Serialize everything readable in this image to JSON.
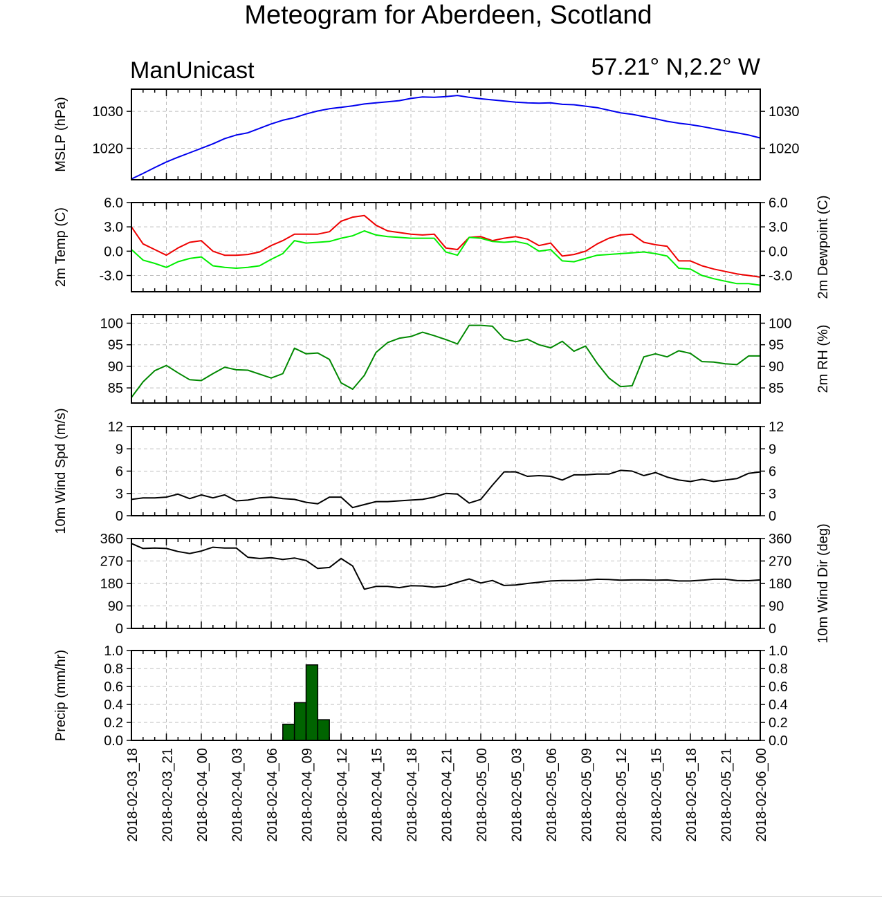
{
  "header": {
    "title": "Meteogram for Aberdeen, Scotland",
    "model": "ManUnicast",
    "location": "57.21° N,2.2° W"
  },
  "chart_data": {
    "type": "line",
    "grid": true,
    "x_tick_labels": [
      "2018-02-03_18",
      "2018-02-03_21",
      "2018-02-04_00",
      "2018-02-04_03",
      "2018-02-04_06",
      "2018-02-04_09",
      "2018-02-04_12",
      "2018-02-04_15",
      "2018-02-04_18",
      "2018-02-04_21",
      "2018-02-05_00",
      "2018-02-05_03",
      "2018-02-05_06",
      "2018-02-05_09",
      "2018-02-05_12",
      "2018-02-05_15",
      "2018-02-05_18",
      "2018-02-05_21",
      "2018-02-06_00"
    ],
    "x_start": "2018-02-03 18:00",
    "x_end": "2018-02-06 00:00",
    "hours": [
      0,
      1,
      2,
      3,
      4,
      5,
      6,
      7,
      8,
      9,
      10,
      11,
      12,
      13,
      14,
      15,
      16,
      17,
      18,
      19,
      20,
      21,
      22,
      23,
      24,
      25,
      26,
      27,
      28,
      29,
      30,
      31,
      32,
      33,
      34,
      35,
      36,
      37,
      38,
      39,
      40,
      41,
      42,
      43,
      44,
      45,
      46,
      47,
      48,
      49,
      50,
      51,
      52,
      53,
      54
    ],
    "panels": [
      {
        "id": "mslp",
        "type": "line",
        "ylabel_left": "MSLP (hPa)",
        "ylabel_right": "",
        "ylim": [
          1011.5,
          1036
        ],
        "ticks": [
          1020,
          1030
        ],
        "tick_labels": [
          "1020",
          "1030"
        ],
        "series": [
          {
            "color": "#0000ee",
            "values": [
              1011.7,
              1013.2,
              1014.8,
              1016.3,
              1017.6,
              1018.8,
              1020.0,
              1021.2,
              1022.6,
              1023.6,
              1024.2,
              1025.4,
              1026.6,
              1027.6,
              1028.3,
              1029.3,
              1030.1,
              1030.7,
              1031.1,
              1031.5,
              1032.0,
              1032.3,
              1032.6,
              1032.9,
              1033.5,
              1033.9,
              1033.8,
              1034.0,
              1034.3,
              1033.8,
              1033.4,
              1033.1,
              1032.8,
              1032.5,
              1032.3,
              1032.2,
              1032.3,
              1031.9,
              1031.8,
              1031.4,
              1031.0,
              1030.3,
              1029.6,
              1029.2,
              1028.6,
              1028.0,
              1027.3,
              1026.8,
              1026.4,
              1025.9,
              1025.3,
              1024.7,
              1024.2,
              1023.6,
              1022.8
            ]
          }
        ]
      },
      {
        "id": "temp",
        "type": "line",
        "ylabel_left": "2m Temp (C)",
        "ylabel_right": "2m Dewpoint (C)",
        "ylim": [
          -5.0,
          6.0
        ],
        "ticks": [
          -3,
          0,
          3,
          6
        ],
        "tick_labels": [
          "-3.0",
          "0.0",
          "3.0",
          "6.0"
        ],
        "series": [
          {
            "color": "#ee0000",
            "values": [
              3.0,
              0.9,
              0.2,
              -0.5,
              0.4,
              1.1,
              1.3,
              0.0,
              -0.5,
              -0.5,
              -0.4,
              -0.1,
              0.7,
              1.3,
              2.1,
              2.1,
              2.1,
              2.4,
              3.7,
              4.2,
              4.4,
              3.2,
              2.5,
              2.3,
              2.1,
              2.0,
              2.1,
              0.4,
              0.2,
              1.7,
              1.8,
              1.3,
              1.6,
              1.8,
              1.5,
              0.7,
              1.0,
              -0.6,
              -0.4,
              0.0,
              0.9,
              1.6,
              2.0,
              2.1,
              1.1,
              0.8,
              0.6,
              -1.2,
              -1.2,
              -1.8,
              -2.2,
              -2.5,
              -2.8,
              -3.0,
              -3.2
            ]
          },
          {
            "color": "#00ee00",
            "values": [
              0.2,
              -1.1,
              -1.5,
              -2.0,
              -1.3,
              -0.9,
              -0.7,
              -1.8,
              -2.0,
              -2.1,
              -2.0,
              -1.8,
              -1.0,
              -0.3,
              1.3,
              1.0,
              1.1,
              1.2,
              1.6,
              1.9,
              2.5,
              2.0,
              1.8,
              1.7,
              1.6,
              1.6,
              1.6,
              -0.1,
              -0.5,
              1.7,
              1.6,
              1.2,
              1.1,
              1.2,
              0.9,
              0.0,
              0.2,
              -1.2,
              -1.3,
              -0.9,
              -0.5,
              -0.4,
              -0.3,
              -0.2,
              -0.1,
              -0.3,
              -0.6,
              -2.1,
              -2.2,
              -3.0,
              -3.4,
              -3.7,
              -4.0,
              -4.0,
              -4.2
            ]
          }
        ]
      },
      {
        "id": "rh",
        "type": "line",
        "ylabel_left": "",
        "ylabel_right": "2m RH (%)",
        "ylim": [
          81.5,
          102
        ],
        "ticks": [
          85,
          90,
          95,
          100
        ],
        "tick_labels": [
          "85",
          "90",
          "95",
          "100"
        ],
        "series": [
          {
            "color": "#008800",
            "values": [
              82.8,
              86.4,
              89.0,
              90.2,
              88.5,
              86.9,
              86.7,
              88.3,
              89.8,
              89.2,
              89.1,
              88.2,
              87.3,
              88.3,
              94.2,
              92.9,
              93.1,
              91.6,
              86.2,
              84.7,
              87.9,
              93.2,
              95.5,
              96.5,
              96.9,
              97.9,
              97.1,
              96.2,
              95.2,
              99.5,
              99.5,
              99.3,
              96.4,
              95.7,
              96.3,
              95.0,
              94.3,
              95.8,
              93.5,
              94.7,
              90.7,
              87.3,
              85.3,
              85.5,
              92.2,
              92.9,
              92.2,
              93.6,
              93.0,
              91.1,
              91.0,
              90.6,
              90.4,
              92.4,
              92.4
            ]
          }
        ]
      },
      {
        "id": "wspd",
        "type": "line",
        "ylabel_left": "10m Wind Spd (m/s)",
        "ylabel_right": "",
        "ylim": [
          0,
          12
        ],
        "ticks": [
          0,
          3,
          6,
          9,
          12
        ],
        "tick_labels": [
          "0",
          "3",
          "6",
          "9",
          "12"
        ],
        "series": [
          {
            "color": "#000000",
            "values": [
              2.2,
              2.4,
              2.4,
              2.5,
              2.9,
              2.3,
              2.8,
              2.4,
              2.8,
              2.0,
              2.1,
              2.4,
              2.5,
              2.3,
              2.2,
              1.8,
              1.6,
              2.5,
              2.5,
              1.1,
              1.5,
              1.9,
              1.9,
              2.0,
              2.1,
              2.2,
              2.5,
              3.0,
              2.9,
              1.7,
              2.2,
              4.1,
              5.9,
              5.9,
              5.3,
              5.4,
              5.3,
              4.8,
              5.5,
              5.5,
              5.6,
              5.6,
              6.1,
              6.0,
              5.4,
              5.8,
              5.2,
              4.8,
              4.6,
              4.9,
              4.6,
              4.8,
              5.0,
              5.7,
              5.9
            ]
          }
        ]
      },
      {
        "id": "wdir",
        "type": "line",
        "ylabel_left": "",
        "ylabel_right": "10m Wind Dir (deg)",
        "ylim": [
          0,
          360
        ],
        "ticks": [
          0,
          90,
          180,
          270,
          360
        ],
        "tick_labels": [
          "0",
          "90",
          "180",
          "270",
          "360"
        ],
        "series": [
          {
            "color": "#000000",
            "values": [
              340,
              320,
              322,
              320,
              308,
              300,
              310,
              325,
              322,
              322,
              285,
              280,
              283,
              276,
              282,
              272,
              240,
              244,
              280,
              250,
              157,
              168,
              168,
              163,
              171,
              170,
              165,
              170,
              185,
              198,
              182,
              192,
              172,
              174,
              180,
              185,
              190,
              192,
              192,
              193,
              197,
              196,
              193,
              194,
              194,
              193,
              194,
              190,
              190,
              193,
              197,
              197,
              192,
              191,
              194
            ]
          }
        ]
      },
      {
        "id": "precip",
        "type": "bar",
        "ylabel_left": "Precip (mm/hr)",
        "ylabel_right": "",
        "ylim": [
          0,
          1.0
        ],
        "ticks": [
          0.0,
          0.2,
          0.4,
          0.6,
          0.8,
          1.0
        ],
        "tick_labels": [
          "0.0",
          "0.2",
          "0.4",
          "0.6",
          "0.8",
          "1.0"
        ],
        "bar_color": "#006400",
        "bar_start_hours": [
          13,
          14,
          15,
          16
        ],
        "values": [
          0.18,
          0.42,
          0.84,
          0.23
        ]
      }
    ]
  }
}
